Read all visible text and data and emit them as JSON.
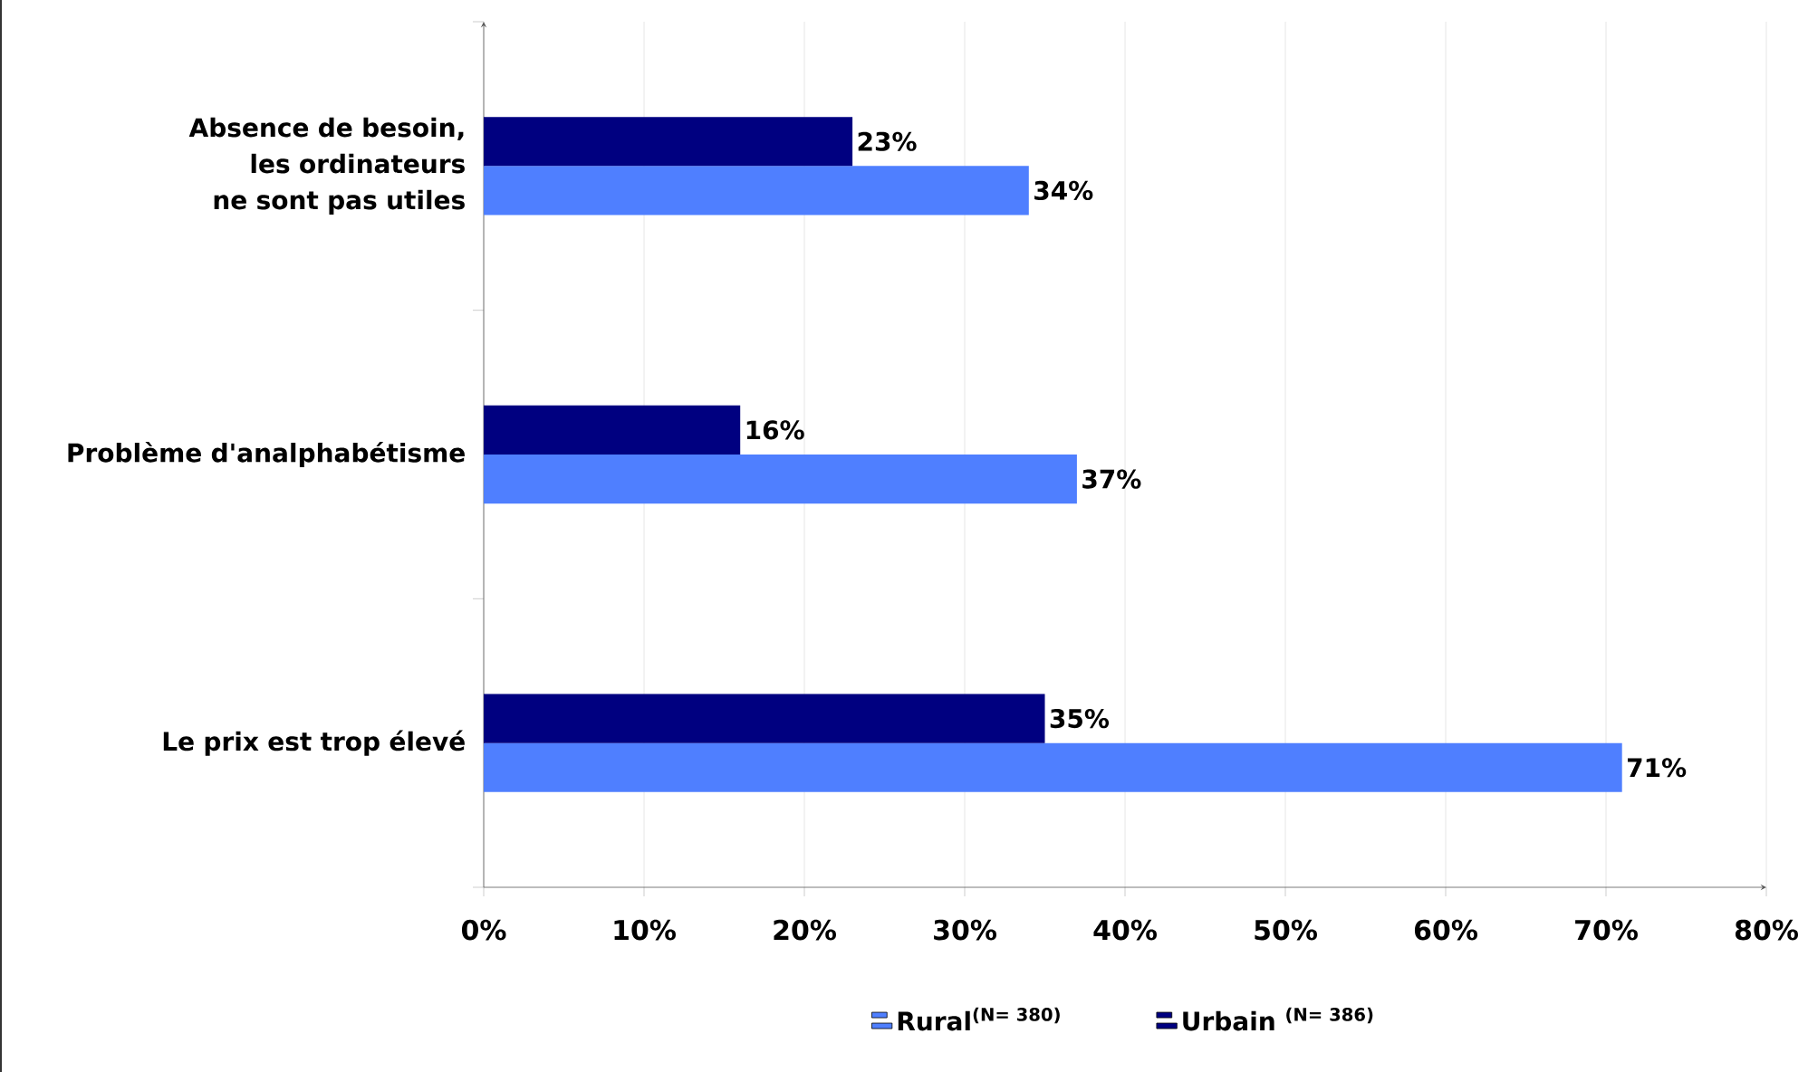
{
  "chart_data": {
    "type": "bar",
    "orientation": "horizontal",
    "categories": [
      "Absence de besoin, les ordinateurs ne sont pas utiles",
      "Problème d'analphabétisme",
      "Le prix est trop élevé"
    ],
    "series": [
      {
        "name": "Rural$^{(N= 380)}$",
        "color": "#4f7fff",
        "values": [
          34,
          37,
          71
        ],
        "value_labels": [
          "34%",
          "37%",
          "71%"
        ]
      },
      {
        "name": "Urbain $^{(N= 386)}$",
        "color": "#000080",
        "values": [
          23,
          16,
          35
        ],
        "value_labels": [
          "23%",
          "16%",
          "35%"
        ]
      }
    ],
    "xlim": [
      0,
      80
    ],
    "xticks": [
      {
        "value": 0,
        "label": "0%"
      },
      {
        "value": 10,
        "label": "10%"
      },
      {
        "value": 20,
        "label": "20%"
      },
      {
        "value": 30,
        "label": "30%"
      },
      {
        "value": 40,
        "label": "40%"
      },
      {
        "value": 50,
        "label": "50%"
      },
      {
        "value": 60,
        "label": "60%"
      },
      {
        "value": 70,
        "label": "70%"
      },
      {
        "value": 80,
        "label": "80%"
      }
    ],
    "grid": "x",
    "legend": "bottom"
  }
}
